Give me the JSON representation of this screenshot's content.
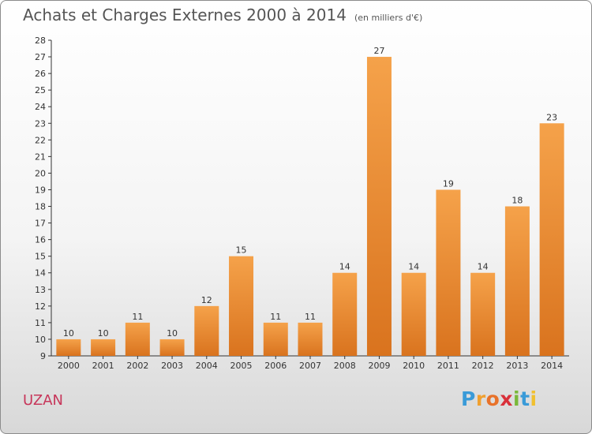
{
  "chart_data": {
    "type": "bar",
    "title": "Achats et Charges Externes 2000 à 2014",
    "unit": "(en milliers d'€)",
    "categories": [
      "2000",
      "2001",
      "2002",
      "2003",
      "2004",
      "2005",
      "2006",
      "2007",
      "2008",
      "2009",
      "2010",
      "2011",
      "2012",
      "2013",
      "2014"
    ],
    "values": [
      10,
      10,
      11,
      10,
      12,
      15,
      11,
      11,
      14,
      27,
      14,
      19,
      14,
      18,
      23
    ],
    "ylim": [
      9,
      28
    ],
    "yticks": [
      9,
      10,
      11,
      12,
      13,
      14,
      15,
      16,
      17,
      18,
      19,
      20,
      21,
      22,
      23,
      24,
      25,
      26,
      27,
      28
    ],
    "grid": false,
    "bar_color": "#f0963c",
    "bar_color_dark": "#d9731e"
  },
  "footer": {
    "town": "UZAN",
    "logo_letters": [
      "P",
      "r",
      "o",
      "x",
      "i",
      "t",
      "i"
    ],
    "logo_colors": [
      "#3a9bd8",
      "#f0a030",
      "#e8722a",
      "#d9303a",
      "#7ab83a",
      "#3a9bd8",
      "#f0c030"
    ]
  }
}
